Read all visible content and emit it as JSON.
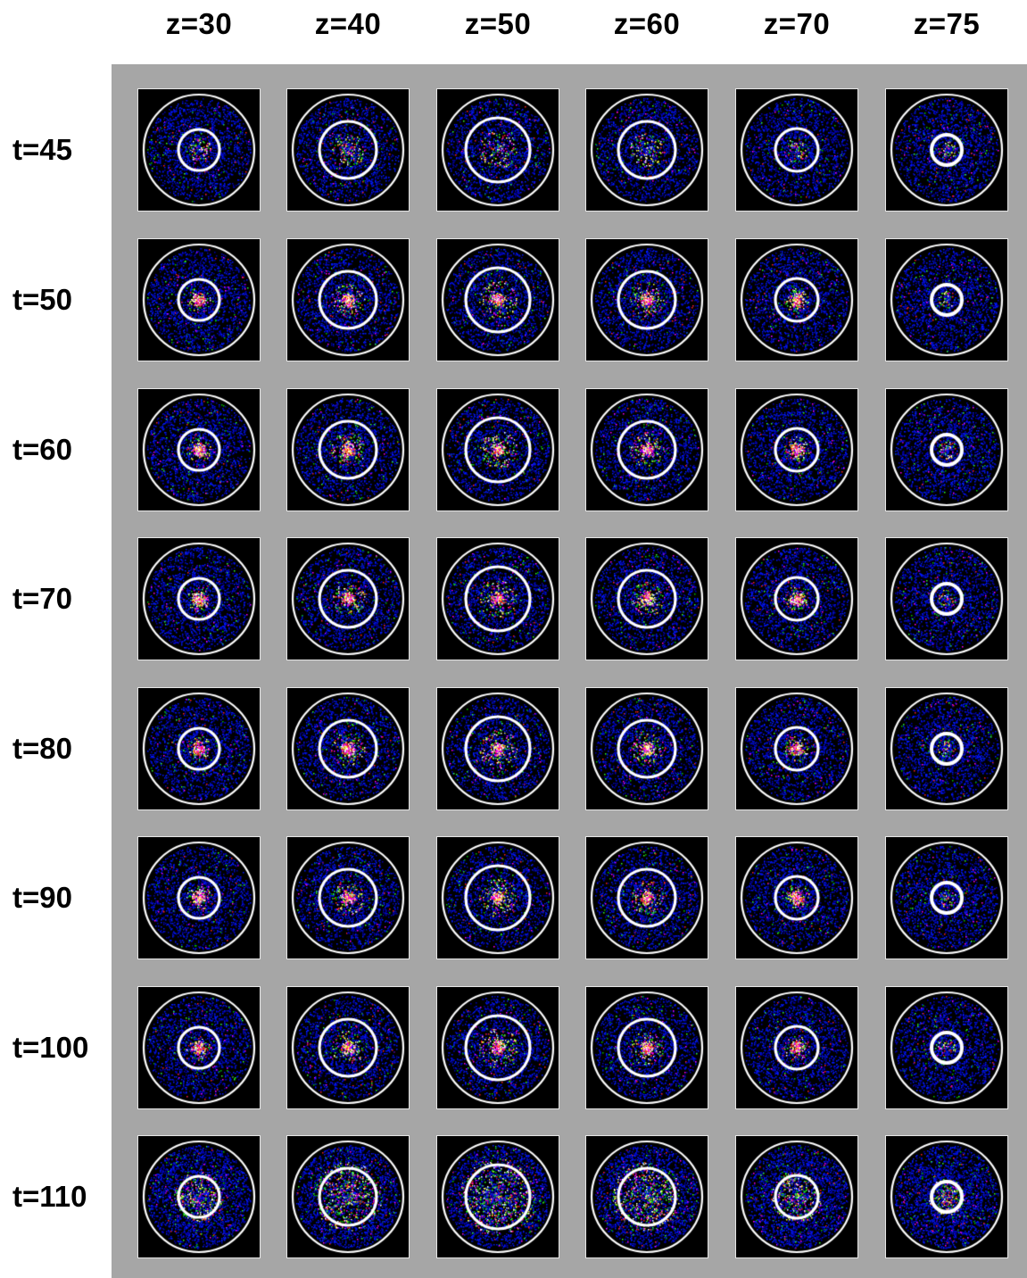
{
  "columns": [
    "z=30",
    "z=40",
    "z=50",
    "z=60",
    "z=70",
    "z=75"
  ],
  "rows": [
    "t=45",
    "t=50",
    "t=60",
    "t=70",
    "t=80",
    "t=90",
    "t=100",
    "t=110"
  ],
  "colors": {
    "panel_background": "#a6a6a6",
    "tile_background": "#000000",
    "ring": "#ffffff",
    "scatter_palette": [
      "#0000b4",
      "#0018ff",
      "#00c000",
      "#30ff30",
      "#ff2020",
      "#ff00ff",
      "#ffff40",
      "#ffffff"
    ]
  }
}
